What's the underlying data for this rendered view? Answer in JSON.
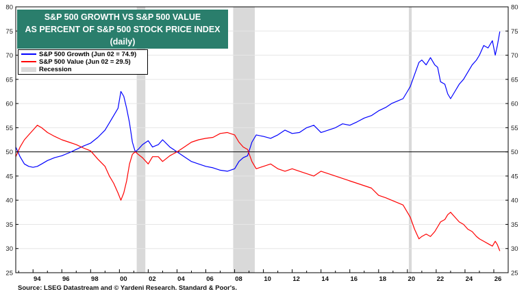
{
  "title_lines": [
    "S&P 500 GROWTH VS S&P 500 VALUE",
    "AS PERCENT OF S&P 500 STOCK PRICE INDEX",
    "(daily)"
  ],
  "legend": {
    "growth": "S&P 500 Growth (Jun 02 = 74.9)",
    "value": "S&P 500 Value (Jun 02 = 29.5)",
    "recession": "Recession"
  },
  "source": "Source: LSEG Datastream and © Yardeni Research. Standard & Poor's.",
  "colors": {
    "growth": "#0000ff",
    "value": "#ff0000",
    "recession": "#d9d9d9",
    "title_bg": "#2a7e6c"
  },
  "chart_data": {
    "type": "line",
    "title": "S&P 500 GROWTH VS S&P 500 VALUE AS PERCENT OF S&P 500 STOCK PRICE INDEX (daily)",
    "xlabel": "",
    "ylabel": "",
    "xlim": [
      1992.8,
      2027.0
    ],
    "ylim": [
      25,
      80
    ],
    "yticks": [
      25,
      30,
      35,
      40,
      45,
      50,
      55,
      60,
      65,
      70,
      75,
      80
    ],
    "xticks": [
      {
        "year": 1994,
        "label": "94"
      },
      {
        "year": 1996,
        "label": "96"
      },
      {
        "year": 1998,
        "label": "98"
      },
      {
        "year": 2000,
        "label": "00"
      },
      {
        "year": 2002,
        "label": "02"
      },
      {
        "year": 2004,
        "label": "04"
      },
      {
        "year": 2006,
        "label": "06"
      },
      {
        "year": 2008,
        "label": "08"
      },
      {
        "year": 2010,
        "label": "10"
      },
      {
        "year": 2012,
        "label": "12"
      },
      {
        "year": 2014,
        "label": "14"
      },
      {
        "year": 2016,
        "label": "16"
      },
      {
        "year": 2018,
        "label": "18"
      },
      {
        "year": 2020,
        "label": "20"
      },
      {
        "year": 2022,
        "label": "22"
      },
      {
        "year": 2024,
        "label": "24"
      },
      {
        "year": 2026,
        "label": "26"
      }
    ],
    "reference_line": 50,
    "recessions": [
      [
        2001.2,
        2001.8
      ],
      [
        2007.9,
        2009.4
      ],
      [
        2020.1,
        2020.3
      ]
    ],
    "series": [
      {
        "name": "S&P 500 Growth (Jun 02 = 74.9)",
        "color": "#0000ff",
        "x": [
          1992.8,
          1993.1,
          1993.4,
          1993.7,
          1994.0,
          1994.3,
          1994.6,
          1995.0,
          1995.5,
          1996.0,
          1996.5,
          1997.0,
          1997.5,
          1998.0,
          1998.5,
          1999.0,
          1999.3,
          1999.6,
          1999.9,
          2000.1,
          2000.3,
          2000.5,
          2000.7,
          2000.9,
          2001.1,
          2001.3,
          2001.6,
          2002.0,
          2002.3,
          2002.7,
          2003.0,
          2003.5,
          2004.0,
          2004.5,
          2005.0,
          2005.5,
          2006.0,
          2006.5,
          2007.0,
          2007.5,
          2008.0,
          2008.3,
          2008.6,
          2008.9,
          2009.2,
          2009.5,
          2010.0,
          2010.5,
          2011.0,
          2011.5,
          2012.0,
          2012.5,
          2013.0,
          2013.5,
          2014.0,
          2014.5,
          2015.0,
          2015.5,
          2016.0,
          2016.5,
          2017.0,
          2017.5,
          2018.0,
          2018.5,
          2018.9,
          2019.3,
          2019.7,
          2020.0,
          2020.2,
          2020.5,
          2020.8,
          2021.0,
          2021.3,
          2021.6,
          2021.9,
          2022.1,
          2022.3,
          2022.6,
          2022.8,
          2023.0,
          2023.3,
          2023.6,
          2023.9,
          2024.2,
          2024.5,
          2024.8,
          2025.0,
          2025.3,
          2025.6,
          2025.9,
          2026.1,
          2026.25,
          2026.42
        ],
        "values": [
          51.0,
          49.0,
          47.5,
          47.0,
          46.8,
          47.0,
          47.5,
          48.2,
          48.8,
          49.2,
          49.8,
          50.5,
          51.2,
          51.8,
          53.0,
          54.5,
          56.0,
          57.5,
          59.0,
          62.5,
          61.5,
          59.0,
          56.0,
          52.0,
          50.0,
          50.5,
          51.5,
          52.3,
          51.0,
          51.5,
          52.5,
          51.0,
          50.0,
          49.0,
          48.0,
          47.5,
          47.0,
          46.7,
          46.2,
          46.0,
          46.5,
          48.0,
          48.8,
          49.2,
          52.0,
          53.5,
          53.2,
          52.8,
          53.5,
          54.5,
          53.8,
          54.0,
          55.0,
          55.5,
          54.0,
          54.5,
          55.0,
          55.8,
          55.5,
          56.2,
          57.0,
          57.5,
          58.5,
          59.2,
          60.0,
          60.5,
          61.0,
          62.5,
          63.5,
          66.0,
          68.5,
          69.0,
          68.0,
          69.5,
          68.0,
          67.5,
          64.5,
          64.0,
          62.0,
          61.0,
          62.5,
          64.0,
          65.0,
          66.5,
          68.0,
          69.0,
          70.0,
          72.0,
          71.5,
          73.0,
          70.0,
          72.0,
          74.9
        ]
      },
      {
        "name": "S&P 500 Value (Jun 02 = 29.5)",
        "color": "#ff0000",
        "x": [
          1992.8,
          1993.1,
          1993.4,
          1993.7,
          1994.0,
          1994.3,
          1994.6,
          1995.0,
          1995.5,
          1996.0,
          1996.5,
          1997.0,
          1997.5,
          1998.0,
          1998.5,
          1999.0,
          1999.3,
          1999.6,
          1999.9,
          2000.1,
          2000.3,
          2000.5,
          2000.7,
          2000.9,
          2001.1,
          2001.3,
          2001.6,
          2002.0,
          2002.3,
          2002.7,
          2003.0,
          2003.5,
          2004.0,
          2004.5,
          2005.0,
          2005.5,
          2006.0,
          2006.5,
          2007.0,
          2007.5,
          2008.0,
          2008.3,
          2008.6,
          2008.9,
          2009.2,
          2009.5,
          2010.0,
          2010.5,
          2011.0,
          2011.5,
          2012.0,
          2012.5,
          2013.0,
          2013.5,
          2014.0,
          2014.5,
          2015.0,
          2015.5,
          2016.0,
          2016.5,
          2017.0,
          2017.5,
          2018.0,
          2018.5,
          2018.9,
          2019.3,
          2019.7,
          2020.0,
          2020.2,
          2020.5,
          2020.8,
          2021.0,
          2021.3,
          2021.6,
          2021.9,
          2022.1,
          2022.3,
          2022.6,
          2022.8,
          2023.0,
          2023.3,
          2023.6,
          2023.9,
          2024.2,
          2024.5,
          2024.8,
          2025.0,
          2025.3,
          2025.6,
          2025.9,
          2026.1,
          2026.25,
          2026.42
        ],
        "values": [
          49.0,
          51.0,
          52.5,
          53.5,
          54.5,
          55.5,
          55.0,
          54.0,
          53.2,
          52.5,
          52.0,
          51.5,
          50.8,
          50.2,
          48.5,
          47.0,
          45.0,
          43.5,
          41.5,
          40.0,
          41.5,
          44.0,
          47.5,
          49.5,
          50.0,
          49.5,
          48.8,
          47.5,
          49.0,
          49.0,
          48.0,
          49.2,
          50.0,
          51.0,
          52.0,
          52.5,
          52.8,
          53.0,
          53.8,
          54.0,
          53.5,
          52.0,
          51.0,
          50.5,
          48.0,
          46.5,
          47.0,
          47.5,
          46.5,
          46.0,
          46.5,
          46.0,
          45.5,
          45.0,
          46.0,
          45.5,
          45.0,
          44.5,
          44.0,
          43.5,
          43.0,
          42.5,
          41.0,
          40.5,
          40.0,
          39.5,
          39.0,
          37.5,
          36.5,
          34.0,
          32.0,
          32.5,
          33.0,
          32.5,
          33.5,
          34.5,
          35.5,
          36.0,
          37.0,
          37.5,
          36.5,
          35.5,
          35.0,
          34.0,
          33.5,
          32.5,
          32.0,
          31.5,
          31.0,
          30.5,
          31.5,
          30.8,
          29.5
        ]
      }
    ]
  }
}
